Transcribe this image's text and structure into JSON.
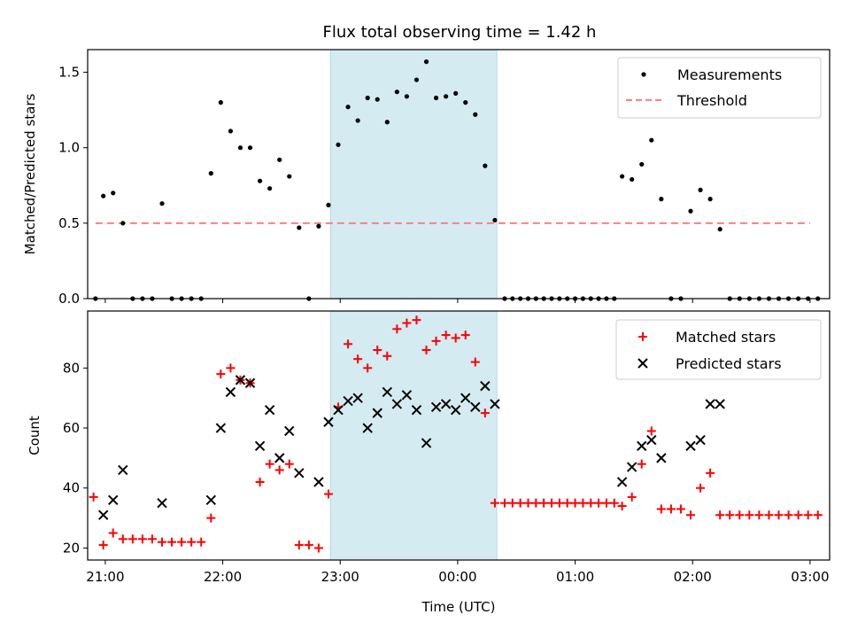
{
  "chart_data": [
    {
      "type": "scatter",
      "title": "Flux total observing time = 1.42 h",
      "ylabel": "Matched/Predicted stars",
      "xlabel": "",
      "ylim": [
        0,
        1.65
      ],
      "xlim": [
        "20:51",
        "03:10"
      ],
      "yticks": [
        0.0,
        0.5,
        1.0,
        1.5
      ],
      "ytick_labels": [
        "0.0",
        "0.5",
        "1.0",
        "1.5"
      ],
      "shaded_interval": [
        "22:55",
        "00:20"
      ],
      "shade_color": "#d4ebf2",
      "legend": {
        "position": "upper right",
        "entries": [
          "Measurements",
          "Threshold"
        ]
      },
      "threshold": {
        "name": "Threshold",
        "value": 0.5,
        "x_range": [
          "20:55",
          "03:00"
        ],
        "color": "#ff7f7f",
        "style": "dashed"
      },
      "series": [
        {
          "name": "Measurements",
          "marker": "dot",
          "color": "#000000",
          "points": [
            [
              "20:55",
              0.0
            ],
            [
              "20:59",
              0.68
            ],
            [
              "21:04",
              0.7
            ],
            [
              "21:09",
              0.5
            ],
            [
              "21:14",
              0.0
            ],
            [
              "21:19",
              0.0
            ],
            [
              "21:24",
              0.0
            ],
            [
              "21:29",
              0.63
            ],
            [
              "21:34",
              0.0
            ],
            [
              "21:39",
              0.0
            ],
            [
              "21:44",
              0.0
            ],
            [
              "21:49",
              0.0
            ],
            [
              "21:54",
              0.83
            ],
            [
              "21:59",
              1.3
            ],
            [
              "22:04",
              1.11
            ],
            [
              "22:09",
              1.0
            ],
            [
              "22:14",
              1.0
            ],
            [
              "22:19",
              0.78
            ],
            [
              "22:24",
              0.73
            ],
            [
              "22:29",
              0.92
            ],
            [
              "22:34",
              0.81
            ],
            [
              "22:39",
              0.47
            ],
            [
              "22:44",
              0.0
            ],
            [
              "22:49",
              0.48
            ],
            [
              "22:54",
              0.62
            ],
            [
              "22:59",
              1.02
            ],
            [
              "23:04",
              1.27
            ],
            [
              "23:09",
              1.18
            ],
            [
              "23:14",
              1.33
            ],
            [
              "23:19",
              1.32
            ],
            [
              "23:24",
              1.17
            ],
            [
              "23:29",
              1.37
            ],
            [
              "23:34",
              1.34
            ],
            [
              "23:39",
              1.45
            ],
            [
              "23:44",
              1.57
            ],
            [
              "23:49",
              1.33
            ],
            [
              "23:54",
              1.34
            ],
            [
              "23:59",
              1.36
            ],
            [
              "00:04",
              1.3
            ],
            [
              "00:09",
              1.22
            ],
            [
              "00:14",
              0.88
            ],
            [
              "00:19",
              0.52
            ],
            [
              "00:24",
              0.0
            ],
            [
              "00:28",
              0.0
            ],
            [
              "00:32",
              0.0
            ],
            [
              "00:36",
              0.0
            ],
            [
              "00:40",
              0.0
            ],
            [
              "00:44",
              0.0
            ],
            [
              "00:48",
              0.0
            ],
            [
              "00:52",
              0.0
            ],
            [
              "00:56",
              0.0
            ],
            [
              "01:00",
              0.0
            ],
            [
              "01:04",
              0.0
            ],
            [
              "01:08",
              0.0
            ],
            [
              "01:12",
              0.0
            ],
            [
              "01:16",
              0.0
            ],
            [
              "01:20",
              0.0
            ],
            [
              "01:24",
              0.81
            ],
            [
              "01:29",
              0.79
            ],
            [
              "01:34",
              0.89
            ],
            [
              "01:39",
              1.05
            ],
            [
              "01:44",
              0.66
            ],
            [
              "01:49",
              0.0
            ],
            [
              "01:54",
              0.0
            ],
            [
              "01:59",
              0.58
            ],
            [
              "02:04",
              0.72
            ],
            [
              "02:09",
              0.66
            ],
            [
              "02:14",
              0.46
            ],
            [
              "02:19",
              0.0
            ],
            [
              "02:24",
              0.0
            ],
            [
              "02:29",
              0.0
            ],
            [
              "02:34",
              0.0
            ],
            [
              "02:39",
              0.0
            ],
            [
              "02:44",
              0.0
            ],
            [
              "02:49",
              0.0
            ],
            [
              "02:54",
              0.0
            ],
            [
              "02:59",
              0.0
            ],
            [
              "03:04",
              0.0
            ]
          ]
        }
      ]
    },
    {
      "type": "scatter",
      "title": "",
      "ylabel": "Count",
      "xlabel": "Time (UTC)",
      "ylim": [
        16,
        99
      ],
      "xlim": [
        "20:51",
        "03:10"
      ],
      "yticks": [
        20,
        40,
        60,
        80
      ],
      "ytick_labels": [
        "20",
        "40",
        "60",
        "80"
      ],
      "xticks": [
        "21:00",
        "22:00",
        "23:00",
        "00:00",
        "01:00",
        "02:00",
        "03:00"
      ],
      "xtick_labels": [
        "21:00",
        "22:00",
        "23:00",
        "00:00",
        "01:00",
        "02:00",
        "03:00"
      ],
      "shaded_interval": [
        "22:55",
        "00:20"
      ],
      "shade_color": "#d4ebf2",
      "legend": {
        "position": "upper right",
        "entries": [
          "Matched stars",
          "Predicted stars"
        ]
      },
      "series": [
        {
          "name": "Matched stars",
          "marker": "plus",
          "color": "#ff0000",
          "points": [
            [
              "20:54",
              37
            ],
            [
              "20:59",
              21
            ],
            [
              "21:04",
              25
            ],
            [
              "21:09",
              23
            ],
            [
              "21:14",
              23
            ],
            [
              "21:19",
              23
            ],
            [
              "21:24",
              23
            ],
            [
              "21:29",
              22
            ],
            [
              "21:34",
              22
            ],
            [
              "21:39",
              22
            ],
            [
              "21:44",
              22
            ],
            [
              "21:49",
              22
            ],
            [
              "21:54",
              30
            ],
            [
              "21:59",
              78
            ],
            [
              "22:04",
              80
            ],
            [
              "22:09",
              76
            ],
            [
              "22:14",
              75
            ],
            [
              "22:19",
              42
            ],
            [
              "22:24",
              48
            ],
            [
              "22:29",
              46
            ],
            [
              "22:34",
              48
            ],
            [
              "22:39",
              21
            ],
            [
              "22:44",
              21
            ],
            [
              "22:49",
              20
            ],
            [
              "22:54",
              38
            ],
            [
              "22:59",
              67
            ],
            [
              "23:04",
              88
            ],
            [
              "23:09",
              83
            ],
            [
              "23:14",
              80
            ],
            [
              "23:19",
              86
            ],
            [
              "23:24",
              84
            ],
            [
              "23:29",
              93
            ],
            [
              "23:34",
              95
            ],
            [
              "23:39",
              96
            ],
            [
              "23:44",
              86
            ],
            [
              "23:49",
              89
            ],
            [
              "23:54",
              91
            ],
            [
              "23:59",
              90
            ],
            [
              "00:04",
              91
            ],
            [
              "00:09",
              82
            ],
            [
              "00:14",
              65
            ],
            [
              "00:19",
              35
            ],
            [
              "00:24",
              35
            ],
            [
              "00:28",
              35
            ],
            [
              "00:32",
              35
            ],
            [
              "00:36",
              35
            ],
            [
              "00:40",
              35
            ],
            [
              "00:44",
              35
            ],
            [
              "00:48",
              35
            ],
            [
              "00:52",
              35
            ],
            [
              "00:56",
              35
            ],
            [
              "01:00",
              35
            ],
            [
              "01:04",
              35
            ],
            [
              "01:08",
              35
            ],
            [
              "01:12",
              35
            ],
            [
              "01:16",
              35
            ],
            [
              "01:20",
              35
            ],
            [
              "01:24",
              34
            ],
            [
              "01:29",
              37
            ],
            [
              "01:34",
              48
            ],
            [
              "01:39",
              59
            ],
            [
              "01:44",
              33
            ],
            [
              "01:49",
              33
            ],
            [
              "01:54",
              33
            ],
            [
              "01:59",
              31
            ],
            [
              "02:04",
              40
            ],
            [
              "02:09",
              45
            ],
            [
              "02:14",
              31
            ],
            [
              "02:19",
              31
            ],
            [
              "02:24",
              31
            ],
            [
              "02:29",
              31
            ],
            [
              "02:34",
              31
            ],
            [
              "02:39",
              31
            ],
            [
              "02:44",
              31
            ],
            [
              "02:49",
              31
            ],
            [
              "02:54",
              31
            ],
            [
              "02:59",
              31
            ],
            [
              "03:04",
              31
            ]
          ]
        },
        {
          "name": "Predicted stars",
          "marker": "x",
          "color": "#000000",
          "points": [
            [
              "20:59",
              31
            ],
            [
              "21:04",
              36
            ],
            [
              "21:09",
              46
            ],
            [
              "21:29",
              35
            ],
            [
              "21:54",
              36
            ],
            [
              "21:59",
              60
            ],
            [
              "22:04",
              72
            ],
            [
              "22:09",
              76
            ],
            [
              "22:14",
              75
            ],
            [
              "22:19",
              54
            ],
            [
              "22:24",
              66
            ],
            [
              "22:29",
              50
            ],
            [
              "22:34",
              59
            ],
            [
              "22:39",
              45
            ],
            [
              "22:49",
              42
            ],
            [
              "22:54",
              62
            ],
            [
              "22:59",
              66
            ],
            [
              "23:04",
              69
            ],
            [
              "23:09",
              70
            ],
            [
              "23:14",
              60
            ],
            [
              "23:19",
              65
            ],
            [
              "23:24",
              72
            ],
            [
              "23:29",
              68
            ],
            [
              "23:34",
              71
            ],
            [
              "23:39",
              66
            ],
            [
              "23:44",
              55
            ],
            [
              "23:49",
              67
            ],
            [
              "23:54",
              68
            ],
            [
              "23:59",
              66
            ],
            [
              "00:04",
              70
            ],
            [
              "00:09",
              67
            ],
            [
              "00:14",
              74
            ],
            [
              "00:19",
              68
            ],
            [
              "01:24",
              42
            ],
            [
              "01:29",
              47
            ],
            [
              "01:34",
              54
            ],
            [
              "01:39",
              56
            ],
            [
              "01:44",
              50
            ],
            [
              "01:59",
              54
            ],
            [
              "02:04",
              56
            ],
            [
              "02:09",
              68
            ],
            [
              "02:14",
              68
            ]
          ]
        }
      ]
    }
  ]
}
